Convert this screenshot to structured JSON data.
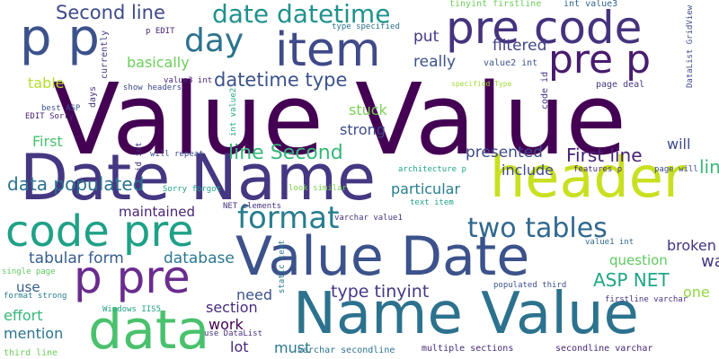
{
  "words": [
    {
      "text": "Value Value",
      "color": "#440154"
    },
    {
      "text": "Date Name",
      "color": "#453781"
    },
    {
      "text": "header",
      "color": "#c8e020"
    },
    {
      "text": "Name Value",
      "color": "#2c728e"
    },
    {
      "text": "Value Date",
      "color": "#3b528b"
    },
    {
      "text": "code pre",
      "color": "#1fa187"
    },
    {
      "text": "data",
      "color": "#4ac16d"
    },
    {
      "text": "p pre",
      "color": "#6a2c8e"
    },
    {
      "text": "item",
      "color": "#3e4a89"
    },
    {
      "text": "pre code",
      "color": "#46337e"
    },
    {
      "text": "pre p",
      "color": "#481c6e"
    },
    {
      "text": "p p",
      "color": "#3b528b"
    },
    {
      "text": "format",
      "color": "#287d8e"
    },
    {
      "text": "two tables",
      "color": "#31688e"
    },
    {
      "text": "day",
      "color": "#2c728e"
    },
    {
      "text": "date datetime",
      "color": "#21918c"
    },
    {
      "text": "Second line",
      "color": "#3e4989"
    },
    {
      "text": "datetime type",
      "color": "#3b528b"
    },
    {
      "text": "type tinyint",
      "color": "#443983"
    },
    {
      "text": "First line",
      "color": "#482475"
    },
    {
      "text": "line Second",
      "color": "#35b779"
    },
    {
      "text": "ASP NET",
      "color": "#21a685"
    },
    {
      "text": "line Date",
      "color": "#38b977"
    },
    {
      "text": "data populated",
      "color": "#2c728e"
    },
    {
      "text": "tabular form",
      "color": "#365c8d"
    },
    {
      "text": "database",
      "color": "#2a788e"
    },
    {
      "text": "section",
      "color": "#472c7a"
    },
    {
      "text": "presented",
      "color": "#3e4a89"
    },
    {
      "text": "maintained",
      "color": "#482475"
    },
    {
      "text": "particular",
      "color": "#287d8e"
    },
    {
      "text": "broken",
      "color": "#46337e"
    },
    {
      "text": "want",
      "color": "#453781"
    },
    {
      "text": "filtered",
      "color": "#414487"
    },
    {
      "text": "basically",
      "color": "#6ccd5a"
    },
    {
      "text": "really",
      "color": "#3b528b"
    },
    {
      "text": "put",
      "color": "#443983"
    },
    {
      "text": "stuck",
      "color": "#7ad151"
    },
    {
      "text": "strong",
      "color": "#3e4a89"
    },
    {
      "text": "include",
      "color": "#3e4989"
    },
    {
      "text": "First",
      "color": "#4ac16d"
    },
    {
      "text": "table",
      "color": "#b5de2b"
    },
    {
      "text": "work",
      "color": "#440154"
    },
    {
      "text": "lot",
      "color": "#482878"
    },
    {
      "text": "must",
      "color": "#2a788e"
    },
    {
      "text": "need",
      "color": "#3b528b"
    },
    {
      "text": "effort",
      "color": "#35b779"
    },
    {
      "text": "mention",
      "color": "#2c728e"
    },
    {
      "text": "use",
      "color": "#365c8d"
    },
    {
      "text": "question",
      "color": "#5ec962"
    },
    {
      "text": "one",
      "color": "#90d743"
    },
    {
      "text": "will",
      "color": "#3e4a89"
    },
    {
      "text": "tinyint firstline",
      "color": "#6ccd5a"
    },
    {
      "text": "int value3",
      "color": "#31688e"
    },
    {
      "text": "type specified",
      "color": "#2c728e"
    },
    {
      "text": "currently",
      "color": "#453781"
    },
    {
      "text": "days",
      "color": "#46327e"
    },
    {
      "text": "p EDIT",
      "color": "#482475"
    },
    {
      "text": "value2 int",
      "color": "#3b528b"
    },
    {
      "text": "code id",
      "color": "#443983"
    },
    {
      "text": "specified Type",
      "color": "#a0da39"
    },
    {
      "text": "page deal",
      "color": "#453781"
    },
    {
      "text": "DataList GridView",
      "color": "#3e4a89"
    },
    {
      "text": "value3 int",
      "color": "#482878"
    },
    {
      "text": "show headers",
      "color": "#3e4a89"
    },
    {
      "text": "best ASP",
      "color": "#3b528b"
    },
    {
      "text": "EDIT Sorry",
      "color": "#482475"
    },
    {
      "text": "int value2",
      "color": "#22a884"
    },
    {
      "text": "id int",
      "color": "#46337e"
    },
    {
      "text": "will repeat",
      "color": "#3e4a89"
    },
    {
      "text": "architecture p",
      "color": "#20a486"
    },
    {
      "text": "features p",
      "color": "#482878"
    },
    {
      "text": "page will",
      "color": "#3e4989"
    },
    {
      "text": "Sorry forgot",
      "color": "#1f9e89"
    },
    {
      "text": "look similar",
      "color": "#7ad151"
    },
    {
      "text": "NET elements",
      "color": "#46327e"
    },
    {
      "text": "text item",
      "color": "#1fa188"
    },
    {
      "text": "varchar value1",
      "color": "#46337e"
    },
    {
      "text": "value1 int",
      "color": "#31688e"
    },
    {
      "text": "single page",
      "color": "#5ec962"
    },
    {
      "text": "format strong",
      "color": "#287d8e"
    },
    {
      "text": "static text",
      "color": "#2a788e"
    },
    {
      "text": "populated third",
      "color": "#3b528b"
    },
    {
      "text": "firstline varchar",
      "color": "#46337e"
    },
    {
      "text": "Windows IIS5",
      "color": "#20a486"
    },
    {
      "text": "use DataList",
      "color": "#46337e"
    },
    {
      "text": "third line",
      "color": "#6ccd5a"
    },
    {
      "text": "varchar secondline",
      "color": "#2c728e"
    },
    {
      "text": "multiple sections",
      "color": "#472c7a"
    },
    {
      "text": "secondline varchar",
      "color": "#482878"
    }
  ]
}
